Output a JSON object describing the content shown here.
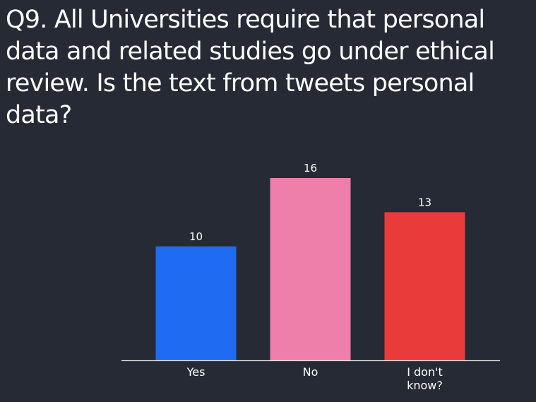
{
  "title": "Q9. All Universities require that personal data and related studies go under ethical review. Is the text from tweets personal data?",
  "chart_data": {
    "type": "bar",
    "title": "Q9. All Universities require that personal data and related studies go under ethical review. Is the text from tweets personal data?",
    "categories": [
      "Yes",
      "No",
      "I don't know?"
    ],
    "category_lines": [
      [
        "Yes"
      ],
      [
        "No"
      ],
      [
        "I don't",
        "know?"
      ]
    ],
    "values": [
      10,
      16,
      13
    ],
    "colors": [
      "#1f6bf2",
      "#ee7fab",
      "#e93c3a"
    ],
    "xlabel": "",
    "ylabel": "",
    "ylim": [
      0,
      16
    ],
    "grid": false,
    "legend": "none"
  }
}
